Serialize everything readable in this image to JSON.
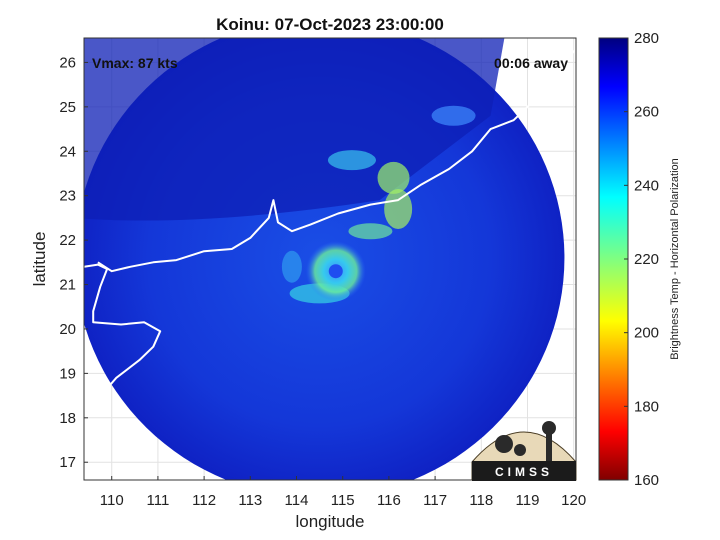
{
  "chart_data": {
    "type": "heatmap",
    "title": "Koinu: 07-Oct-2023 23:00:00",
    "xlabel": "longitude",
    "ylabel": "latitude",
    "xlim": [
      109.4,
      120.05
    ],
    "ylim": [
      16.6,
      26.55
    ],
    "xticks": [
      110,
      111,
      112,
      113,
      114,
      115,
      116,
      117,
      118,
      119,
      120
    ],
    "yticks": [
      17,
      18,
      19,
      20,
      21,
      22,
      23,
      24,
      25,
      26
    ],
    "grid": true,
    "annotations": {
      "vmax": "Vmax: 87 kts",
      "time_away": "00:06 away"
    },
    "colorbar": {
      "label": "Brightness Temp - Horizontal Polarization",
      "min": 160,
      "max": 280,
      "ticks": [
        160,
        180,
        200,
        220,
        240,
        260,
        280
      ],
      "colormap": "jet"
    },
    "swath_center": [
      114.5,
      21.6
    ],
    "swath_radius_deg": 5.3,
    "storm_center": [
      114.85,
      21.3
    ],
    "logo": "CIMSS"
  }
}
